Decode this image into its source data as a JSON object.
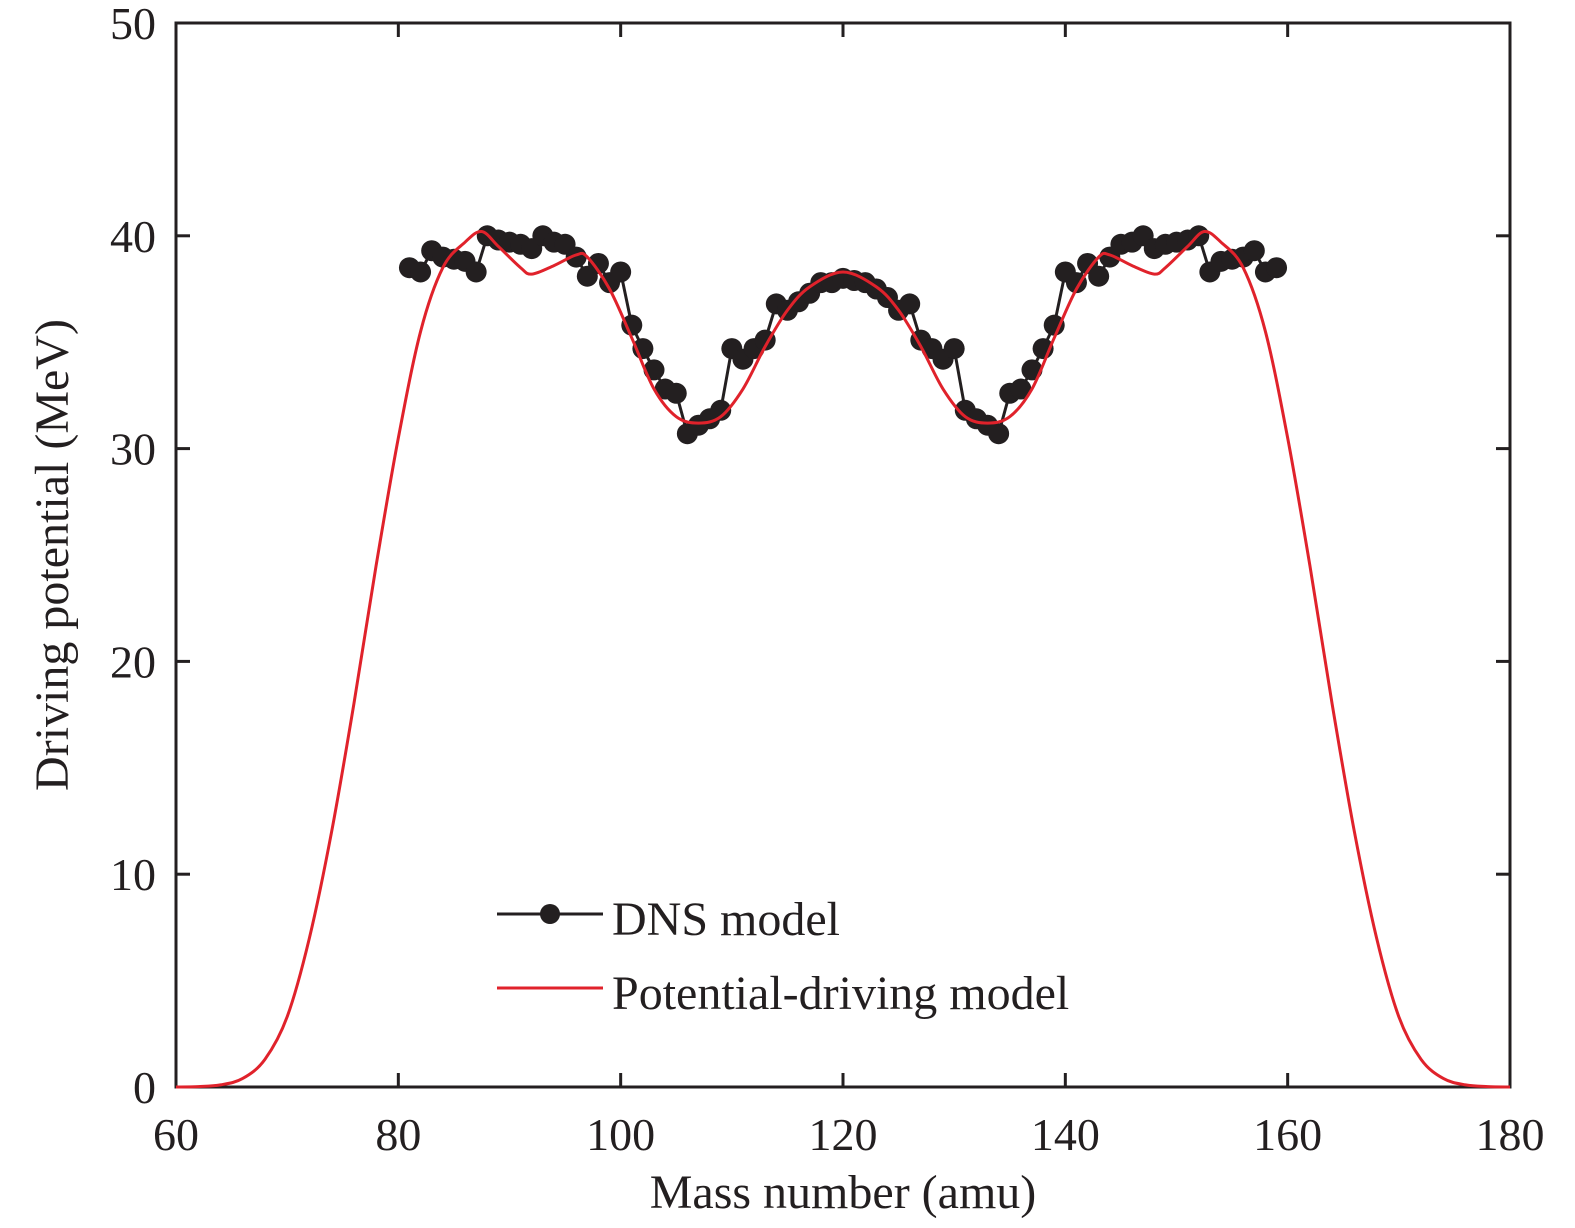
{
  "chart_data": {
    "type": "line",
    "title": "",
    "xlabel": "Mass number (amu)",
    "ylabel": "Driving potential (MeV)",
    "xlim": [
      60,
      180
    ],
    "ylim": [
      0,
      50
    ],
    "xticks": [
      60,
      80,
      100,
      120,
      140,
      160,
      180
    ],
    "yticks": [
      0,
      10,
      20,
      30,
      40,
      50
    ],
    "grid": false,
    "legend": {
      "placement": "lower-center",
      "entries": [
        "DNS model",
        "Potential-driving model"
      ]
    },
    "colors": {
      "dns": "#231f20",
      "potential": "#e0222b",
      "axis": "#231f20"
    },
    "series": [
      {
        "name": "DNS model",
        "style": "line-with-circle-markers",
        "x": [
          81,
          82,
          83,
          84,
          85,
          86,
          87,
          88,
          89,
          90,
          91,
          92,
          93,
          94,
          95,
          96,
          97,
          98,
          99,
          100,
          101,
          102,
          103,
          104,
          105,
          106,
          107,
          108,
          109,
          110,
          111,
          112,
          113,
          114,
          115,
          116,
          117,
          118,
          119,
          120,
          121,
          122,
          123,
          124,
          125,
          126,
          127,
          128,
          129,
          130,
          131,
          132,
          133,
          134,
          135,
          136,
          137,
          138,
          139,
          140,
          141,
          142,
          143,
          144,
          145,
          146,
          147,
          148,
          149,
          150,
          151,
          152,
          153,
          154,
          155,
          156,
          157,
          158,
          159
        ],
        "y": [
          38.5,
          38.3,
          39.3,
          39.0,
          38.9,
          38.8,
          38.3,
          40.0,
          39.8,
          39.7,
          39.6,
          39.4,
          40.0,
          39.7,
          39.6,
          39.0,
          38.1,
          38.7,
          37.8,
          38.3,
          35.8,
          34.7,
          33.7,
          32.8,
          32.6,
          30.7,
          31.1,
          31.4,
          31.8,
          34.7,
          34.2,
          34.7,
          35.1,
          36.8,
          36.5,
          36.9,
          37.3,
          37.8,
          37.8,
          38.0,
          37.9,
          37.8,
          37.5,
          37.1,
          36.5,
          36.8,
          35.1,
          34.7,
          34.2,
          34.7,
          31.8,
          31.4,
          31.1,
          30.7,
          32.6,
          32.8,
          33.7,
          34.7,
          35.8,
          38.3,
          37.8,
          38.7,
          38.1,
          39.0,
          39.6,
          39.7,
          40.0,
          39.4,
          39.6,
          39.7,
          39.8,
          40.0,
          38.3,
          38.8,
          38.9,
          39.0,
          39.3,
          38.3,
          38.5
        ]
      },
      {
        "name": "Potential-driving model",
        "style": "line",
        "x": [
          60,
          62,
          64,
          66,
          68,
          70,
          72,
          74,
          76,
          78,
          80,
          82,
          84,
          86,
          87.5,
          89,
          91,
          92,
          94,
          96,
          97,
          99,
          101,
          103,
          105,
          107,
          109,
          111,
          113,
          115,
          117,
          120,
          123,
          125,
          127,
          129,
          131,
          133,
          135,
          137,
          139,
          141,
          143,
          144,
          146,
          148,
          149,
          151,
          152.5,
          154,
          156,
          158,
          160,
          162,
          164,
          166,
          168,
          170,
          172,
          174,
          176,
          178,
          180
        ],
        "y": [
          0,
          0.02,
          0.1,
          0.4,
          1.3,
          3.3,
          7,
          12,
          18,
          24.5,
          30.5,
          35.5,
          38.5,
          39.7,
          40.2,
          39.5,
          38.5,
          38.2,
          38.6,
          39.1,
          39.0,
          37.5,
          35.2,
          32.8,
          31.5,
          31.2,
          31.5,
          32.8,
          34.8,
          36.5,
          37.6,
          38.3,
          37.6,
          36.5,
          34.8,
          32.8,
          31.5,
          31.2,
          31.5,
          32.8,
          35.2,
          37.5,
          39.0,
          39.1,
          38.6,
          38.2,
          38.5,
          39.5,
          40.2,
          39.7,
          38.5,
          35.5,
          30.5,
          24.5,
          18,
          12,
          7,
          3.3,
          1.3,
          0.4,
          0.1,
          0.02,
          0
        ]
      }
    ]
  }
}
